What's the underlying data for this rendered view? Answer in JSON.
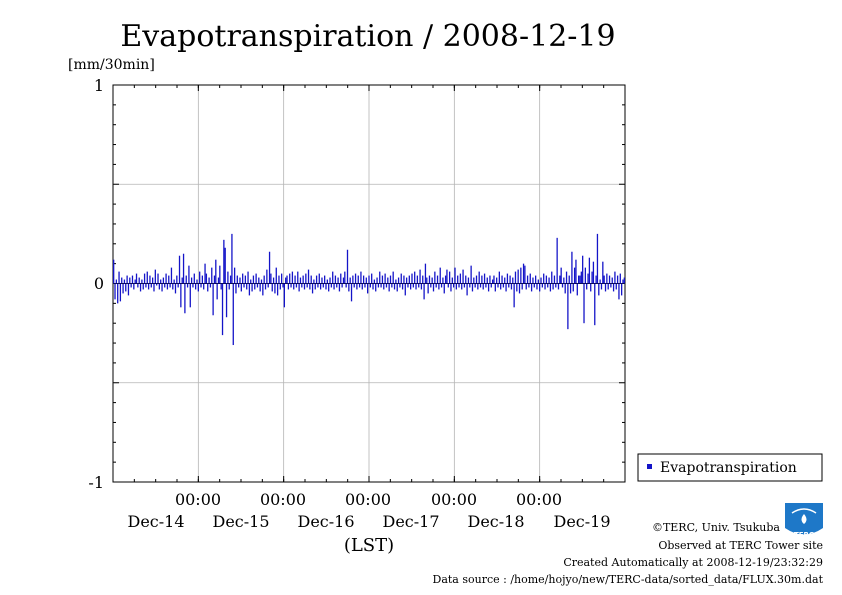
{
  "chart_data": {
    "type": "bar",
    "title": "Evapotranspiration / 2008-12-19",
    "ylabel": "[mm/30min]",
    "xlabel": "(LST)",
    "ylim": [
      -1,
      1
    ],
    "yticks": [
      "1",
      "0",
      "-1"
    ],
    "xticks": [
      {
        "time": "00:00",
        "date": "Dec-15"
      },
      {
        "time": "00:00",
        "date": "Dec-16"
      },
      {
        "time": "00:00",
        "date": "Dec-17"
      },
      {
        "time": "00:00",
        "date": "Dec-18"
      },
      {
        "time": "00:00",
        "date": "Dec-19"
      }
    ],
    "date_labels": [
      "Dec-14",
      "Dec-15",
      "Dec-16",
      "Dec-17",
      "Dec-18",
      "Dec-19"
    ],
    "grid": true,
    "legend_position": "bottom-right",
    "series": [
      {
        "name": "Evapotranspiration",
        "color": "#1414c8",
        "values": [
          0.12,
          -0.08,
          0.02,
          -0.1,
          0.06,
          -0.09,
          0.03,
          -0.05,
          0.02,
          -0.04,
          0.04,
          -0.06,
          0.03,
          -0.02,
          0.04,
          -0.03,
          0.02,
          0.05,
          -0.02,
          0.03,
          -0.04,
          0.02,
          -0.03,
          0.05,
          -0.02,
          0.06,
          -0.03,
          0.04,
          -0.02,
          0.03,
          -0.04,
          0.07,
          -0.01,
          0.05,
          -0.03,
          0.02,
          -0.04,
          0.03,
          -0.02,
          0.05,
          -0.03,
          0.04,
          -0.02,
          0.08,
          -0.03,
          0.02,
          -0.05,
          0.04,
          -0.02,
          0.14,
          -0.12,
          0.03,
          0.15,
          -0.15,
          0.04,
          -0.02,
          0.09,
          -0.12,
          0.03,
          -0.02,
          0.05,
          -0.03,
          0.02,
          -0.04,
          0.06,
          -0.02,
          0.04,
          -0.03,
          0.1,
          0.05,
          -0.04,
          0.03,
          -0.02,
          0.08,
          -0.16,
          0.04,
          0.12,
          -0.08,
          0.03,
          0.09,
          -0.03,
          -0.26,
          0.22,
          0.18,
          -0.17,
          0.06,
          -0.03,
          0.04,
          0.25,
          -0.31,
          0.08,
          -0.05,
          0.04,
          -0.02,
          0.03,
          -0.04,
          0.05,
          -0.02,
          0.04,
          -0.03,
          0.06,
          -0.06,
          0.02,
          -0.04,
          0.04,
          -0.03,
          0.05,
          -0.02,
          0.03,
          -0.04,
          0.02,
          -0.06,
          0.04,
          -0.03,
          0.07,
          -0.02,
          0.16,
          0.05,
          -0.04,
          0.03,
          -0.05,
          0.08,
          -0.06,
          0.04,
          -0.03,
          0.05,
          -0.02,
          -0.12,
          0.03,
          0.04,
          -0.03,
          0.05,
          -0.02,
          0.06,
          -0.03,
          0.04,
          -0.02,
          0.06,
          -0.04,
          0.03,
          -0.02,
          0.04,
          -0.03,
          0.05,
          -0.02,
          0.07,
          -0.03,
          0.04,
          -0.05,
          0.02,
          -0.03,
          0.04,
          -0.02,
          0.05,
          -0.03,
          0.03,
          -0.02,
          0.04,
          -0.03,
          0.02,
          -0.04,
          0.03,
          -0.02,
          0.06,
          -0.03,
          0.04,
          -0.02,
          0.03,
          -0.04,
          0.05,
          -0.02,
          0.03,
          0.06,
          -0.02,
          0.17,
          -0.04,
          0.03,
          -0.09,
          0.04,
          -0.02,
          0.05,
          -0.03,
          0.04,
          -0.02,
          0.06,
          -0.03,
          0.04,
          -0.02,
          0.03,
          -0.05,
          0.04,
          -0.02,
          0.05,
          -0.03,
          0.02,
          -0.04,
          0.03,
          -0.02,
          0.06,
          -0.02,
          0.04,
          -0.03,
          0.05,
          -0.02,
          0.03,
          -0.04,
          0.04,
          -0.02,
          0.06,
          -0.03,
          0.02,
          -0.04,
          0.03,
          -0.02,
          0.05,
          -0.03,
          0.04,
          -0.06,
          0.03,
          -0.02,
          0.04,
          -0.03,
          0.05,
          -0.02,
          0.06,
          -0.03,
          0.04,
          -0.02,
          0.07,
          -0.03,
          0.04,
          -0.08,
          0.1,
          0.03,
          -0.05,
          0.04,
          -0.02,
          0.03,
          -0.04,
          0.06,
          -0.02,
          0.04,
          -0.03,
          0.08,
          -0.02,
          0.03,
          -0.05,
          0.04,
          0.07,
          -0.02,
          0.06,
          -0.04,
          0.03,
          -0.02,
          0.08,
          -0.03,
          0.04,
          -0.02,
          0.05,
          -0.03,
          0.07,
          -0.02,
          0.04,
          -0.06,
          0.03,
          -0.02,
          0.09,
          -0.04,
          0.03,
          -0.02,
          0.04,
          -0.03,
          0.06,
          -0.02,
          0.04,
          -0.03,
          0.05,
          -0.02,
          0.03,
          -0.04,
          0.04,
          -0.02,
          0.02,
          0.04,
          -0.04,
          0.03,
          -0.02,
          0.06,
          -0.03,
          0.04,
          -0.02,
          0.03,
          -0.04,
          0.05,
          -0.02,
          0.04,
          -0.03,
          0.03,
          -0.12,
          0.06,
          -0.04,
          0.07,
          -0.05,
          0.08,
          -0.03,
          0.1,
          0.09,
          -0.03,
          0.04,
          -0.02,
          0.05,
          -0.04,
          0.03,
          -0.02,
          0.04,
          -0.03,
          0.02,
          -0.04,
          0.03,
          -0.02,
          0.05,
          -0.03,
          0.04,
          -0.02,
          0.03,
          -0.04,
          0.06,
          -0.03,
          0.04,
          -0.02,
          0.23,
          -0.03,
          0.04,
          0.08,
          -0.02,
          0.03,
          -0.05,
          0.06,
          -0.23,
          0.04,
          -0.05,
          0.16,
          -0.04,
          0.08,
          0.12,
          -0.06,
          0.04,
          0.04,
          0.06,
          0.14,
          -0.2,
          0.08,
          -0.03,
          0.05,
          0.13,
          -0.04,
          0.06,
          0.11,
          -0.21,
          0.04,
          0.25,
          -0.06,
          0.02,
          -0.03,
          0.11,
          0.04,
          -0.04,
          0.05,
          -0.03,
          0.04,
          -0.02,
          0.03,
          -0.04,
          0.06,
          -0.03,
          0.04,
          -0.08,
          0.05,
          -0.06,
          0.02,
          0.03
        ]
      }
    ],
    "legend_entries": [
      "Evapotranspiration"
    ]
  },
  "credits": {
    "copyright": "©TERC, Univ. Tsukuba",
    "observed": "Observed at TERC Tower site",
    "created": "Created Automatically at 2008-12-19/23:32:29",
    "source": "Data source : /home/hojyo/new/TERC-data/sorted_data/FLUX.30m.dat"
  },
  "logo": {
    "text": "TERC",
    "color": "#1e78c8"
  }
}
